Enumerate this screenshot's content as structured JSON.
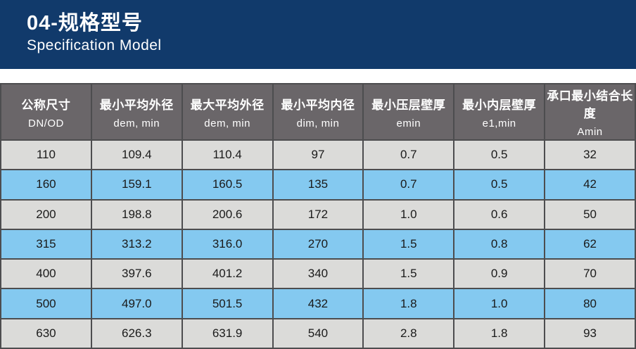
{
  "banner": {
    "title": "04-规格型号",
    "subtitle": "Specification Model",
    "bg_color": "#113a6b",
    "text_color": "#ffffff"
  },
  "table": {
    "header_bg": "#6a6669",
    "header_text_color": "#ffffff",
    "row_color_gray": "#dbdbd9",
    "row_color_blue": "#84c9f0",
    "border_color": "#4d4d4f",
    "columns": [
      {
        "zh": "公称尺寸",
        "sub": "DN/OD"
      },
      {
        "zh": "最小平均外径",
        "sub": "dem, min"
      },
      {
        "zh": "最大平均外径",
        "sub": "dem, min"
      },
      {
        "zh": "最小平均内径",
        "sub": "dim, min"
      },
      {
        "zh": "最小压层壁厚",
        "sub": "emin"
      },
      {
        "zh": "最小内层壁厚",
        "sub": "e1,min"
      },
      {
        "zh": "承口最小结合长度",
        "sub": "Amin"
      }
    ],
    "rows": [
      [
        "110",
        "109.4",
        "110.4",
        "97",
        "0.7",
        "0.5",
        "32"
      ],
      [
        "160",
        "159.1",
        "160.5",
        "135",
        "0.7",
        "0.5",
        "42"
      ],
      [
        "200",
        "198.8",
        "200.6",
        "172",
        "1.0",
        "0.6",
        "50"
      ],
      [
        "315",
        "313.2",
        "316.0",
        "270",
        "1.5",
        "0.8",
        "62"
      ],
      [
        "400",
        "397.6",
        "401.2",
        "340",
        "1.5",
        "0.9",
        "70"
      ],
      [
        "500",
        "497.0",
        "501.5",
        "432",
        "1.8",
        "1.0",
        "80"
      ],
      [
        "630",
        "626.3",
        "631.9",
        "540",
        "2.8",
        "1.8",
        "93"
      ]
    ]
  }
}
